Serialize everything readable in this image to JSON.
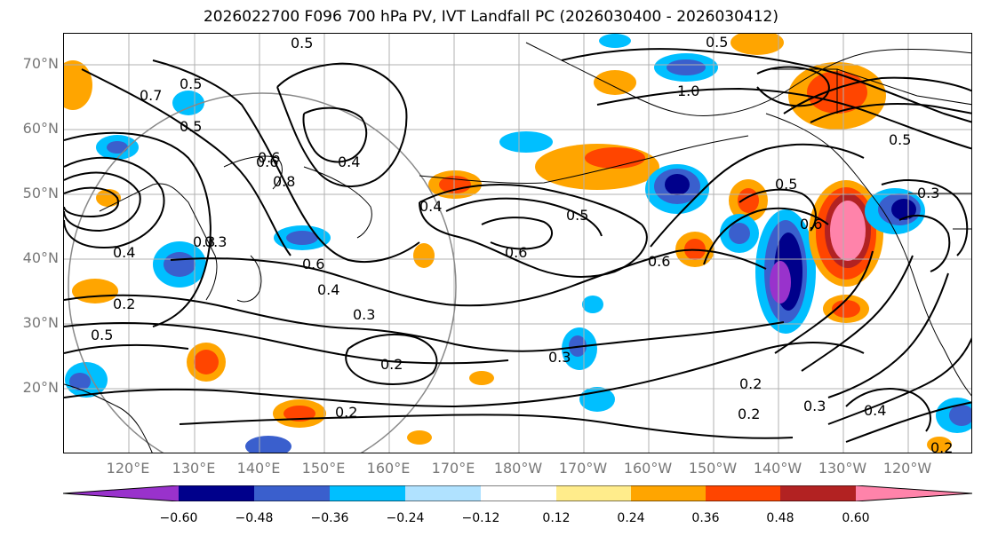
{
  "title": "2026022700 F096 700 hPa PV, IVT Landfall PC (2026030400 - 2026030412)",
  "lat_labels": [
    "70°N",
    "60°N",
    "50°N",
    "40°N",
    "30°N",
    "20°N"
  ],
  "lon_labels": [
    "120°E",
    "130°E",
    "140°E",
    "150°E",
    "160°E",
    "170°E",
    "180°W",
    "170°W",
    "160°W",
    "150°W",
    "140°W",
    "130°W",
    "120°W"
  ],
  "colorbar": {
    "ticks": [
      "−0.60",
      "−0.48",
      "−0.36",
      "−0.24",
      "−0.12",
      "0.12",
      "0.24",
      "0.36",
      "0.48",
      "0.60"
    ],
    "colors": [
      "#9932cc",
      "#00008b",
      "#3a5fcd",
      "#00bfff",
      "#b0e2ff",
      "#ffffff",
      "#ffec8b",
      "#ffa500",
      "#ff4500",
      "#b22222",
      "#ff83aa"
    ]
  },
  "contour_labels": [
    "0.5",
    "0.4",
    "0.6",
    "0.8",
    "0.5",
    "0.7",
    "1.0",
    "0.5",
    "0.3",
    "0.4",
    "0.6",
    "0.3",
    "0.2",
    "0.3",
    "0.2",
    "0.5",
    "0.4",
    "0.6",
    "0.6",
    "0.5",
    "0.6",
    "0.5",
    "0.3",
    "0.2",
    "0.2",
    "0.3",
    "0.4",
    "0.2",
    "0.5",
    "0.6",
    "0.3",
    "0.4",
    "0.2",
    "0.5"
  ]
}
